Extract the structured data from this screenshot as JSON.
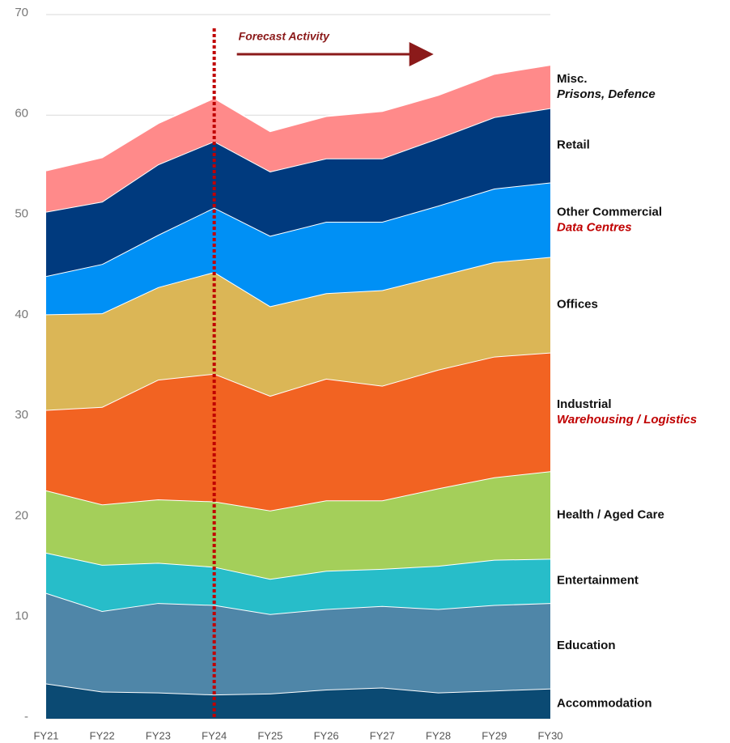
{
  "chart_data": {
    "type": "stacked_area",
    "categories": [
      "FY21",
      "FY22",
      "FY23",
      "FY24",
      "FY25",
      "FY26",
      "FY27",
      "FY28",
      "FY29",
      "FY30"
    ],
    "ylim": [
      0,
      70
    ],
    "yticks": [
      {
        "value": 0,
        "label": "-"
      },
      10,
      20,
      30,
      40,
      50,
      60,
      70
    ],
    "grid": true,
    "annotation": "Forecast Activity",
    "forecast_at": "FY24",
    "series": [
      {
        "name": "Accommodation",
        "color": "#0b4a73",
        "values": [
          3.5,
          2.7,
          2.6,
          2.4,
          2.5,
          2.9,
          3.1,
          2.6,
          2.8,
          3.0
        ]
      },
      {
        "name": "Education",
        "color": "#4f86a8",
        "values": [
          9.0,
          8.0,
          8.9,
          8.9,
          7.9,
          8.0,
          8.1,
          8.3,
          8.5,
          8.5
        ]
      },
      {
        "name": "Entertainment",
        "color": "#27bdc9",
        "values": [
          4.0,
          4.6,
          4.0,
          3.8,
          3.5,
          3.8,
          3.7,
          4.3,
          4.5,
          4.4
        ]
      },
      {
        "name": "Health / Aged Care",
        "color": "#a4cf5a",
        "values": [
          6.2,
          6.0,
          6.3,
          6.5,
          6.8,
          7.0,
          6.8,
          7.7,
          8.2,
          8.7
        ]
      },
      {
        "name": "Industrial",
        "sublabel": "Warehousing / Logistics",
        "color": "#f26322",
        "values": [
          8.0,
          9.7,
          11.9,
          12.7,
          11.4,
          12.1,
          11.4,
          11.8,
          12.0,
          11.8
        ]
      },
      {
        "name": "Offices",
        "color": "#dbb656",
        "values": [
          9.5,
          9.3,
          9.2,
          10.1,
          8.9,
          8.5,
          9.5,
          9.3,
          9.4,
          9.5
        ]
      },
      {
        "name": "Other Commercial",
        "sublabel": "Data Centres",
        "color": "#0090f5",
        "values": [
          3.8,
          4.9,
          5.2,
          6.4,
          7.0,
          7.1,
          6.8,
          7.0,
          7.3,
          7.4
        ]
      },
      {
        "name": "Retail",
        "color": "#003a7e",
        "values": [
          6.4,
          6.2,
          7.0,
          6.6,
          6.4,
          6.3,
          6.3,
          6.7,
          7.1,
          7.4
        ]
      },
      {
        "name": "Misc.",
        "sublabel": "Prisons, Defence",
        "color": "#ff8a8a",
        "values": [
          4.1,
          4.4,
          4.1,
          4.3,
          4.0,
          4.2,
          4.7,
          4.3,
          4.3,
          4.3
        ]
      }
    ]
  }
}
